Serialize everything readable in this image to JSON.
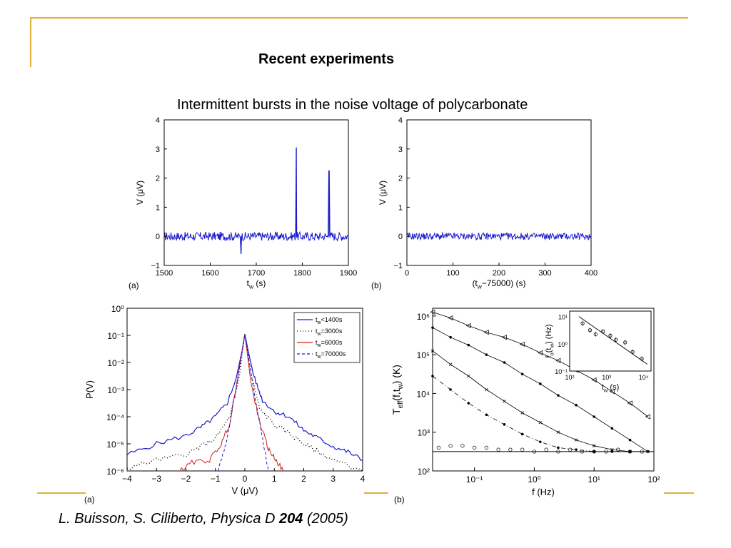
{
  "slide": {
    "title": "Recent experiments",
    "subtitle": "Intermittent bursts in the noise voltage of polycarbonate",
    "citation_prefix": "L. Buisson, S. Ciliberto, Physica D ",
    "citation_volume": "204",
    "citation_suffix": " (2005)"
  },
  "colors": {
    "accent": "#e1b038",
    "trace": "#1a1acc",
    "red": "#d42020",
    "black": "#000000"
  },
  "chart_data": [
    {
      "type": "line",
      "panel_label": "(a)",
      "xlabel_main": "t",
      "xlabel_sub": "w",
      "xlabel_unit": " (s)",
      "ylabel": "V (μV)",
      "xlim": [
        1500,
        1900
      ],
      "ylim": [
        -1,
        4
      ],
      "xticks": [
        1500,
        1600,
        1700,
        1800,
        1900
      ],
      "yticks": [
        -1,
        0,
        1,
        2,
        3,
        4
      ],
      "series": [
        {
          "baseline": 0,
          "noise_amplitude": 0.15,
          "spikes": [
            [
              1667,
              -0.6
            ],
            [
              1787,
              3.05
            ],
            [
              1858,
              2.25
            ]
          ]
        }
      ]
    },
    {
      "type": "line",
      "panel_label": "(b)",
      "xlabel_main": "(t",
      "xlabel_sub": "w",
      "xlabel_unit": "−75000) (s)",
      "ylabel": "V (μV)",
      "xlim": [
        0,
        400
      ],
      "ylim": [
        -1,
        4
      ],
      "xticks": [
        0,
        100,
        200,
        300,
        400
      ],
      "yticks": [
        -1,
        0,
        1,
        2,
        3,
        4
      ],
      "series": [
        {
          "baseline": 0,
          "noise_amplitude": 0.12,
          "spikes": []
        }
      ]
    },
    {
      "type": "line",
      "panel_label": "(a)",
      "xlabel": "V (μV)",
      "ylabel": "P(V)",
      "xlim": [
        -4,
        4
      ],
      "ylim_log10": [
        -6,
        0
      ],
      "yscale": "log",
      "xticks": [
        -4,
        -3,
        -2,
        -1,
        0,
        1,
        2,
        3,
        4
      ],
      "yticks_exp": [
        0,
        -1,
        -2,
        -3,
        -4,
        -5,
        -6
      ],
      "legend": {
        "position": "top-right",
        "entries": [
          {
            "main": "t",
            "sub": "w",
            "rest": "<1400s",
            "style": "solid",
            "color": "#1a1acc"
          },
          {
            "main": "t",
            "sub": "w",
            "rest": "=3000s",
            "style": "dots",
            "color": "#000000"
          },
          {
            "main": "t",
            "sub": "w",
            "rest": "=6000s",
            "style": "solid-marker",
            "color": "#d42020"
          },
          {
            "main": "t",
            "sub": "w",
            "rest": "=70000s",
            "style": "dashed",
            "color": "#1a1acc"
          }
        ]
      },
      "series": [
        {
          "points": [
            [
              -4,
              -5.4
            ],
            [
              -3,
              -5.0
            ],
            [
              -2,
              -4.7
            ],
            [
              -1.5,
              -4.4
            ],
            [
              -1,
              -4.0
            ],
            [
              -0.6,
              -3.5
            ],
            [
              -0.3,
              -2.6
            ],
            [
              -0.1,
              -1.6
            ],
            [
              0,
              -0.95
            ],
            [
              0.1,
              -1.5
            ],
            [
              0.3,
              -2.5
            ],
            [
              0.6,
              -3.4
            ],
            [
              1,
              -3.8
            ],
            [
              1.5,
              -4.0
            ],
            [
              2,
              -4.5
            ],
            [
              2.5,
              -4.8
            ],
            [
              3,
              -5.1
            ],
            [
              3.5,
              -5.3
            ],
            [
              4,
              -5.6
            ]
          ]
        },
        {
          "points": [
            [
              -4,
              -5.9
            ],
            [
              -3,
              -5.6
            ],
            [
              -2,
              -5.4
            ],
            [
              -1.5,
              -5.1
            ],
            [
              -1,
              -4.8
            ],
            [
              -0.5,
              -4.0
            ],
            [
              -0.2,
              -2.6
            ],
            [
              0,
              -0.95
            ],
            [
              0.2,
              -2.4
            ],
            [
              0.5,
              -3.7
            ],
            [
              1,
              -4.3
            ],
            [
              1.5,
              -4.6
            ],
            [
              2,
              -5.0
            ],
            [
              2.5,
              -5.3
            ],
            [
              3,
              -5.6
            ],
            [
              4,
              -6.0
            ]
          ]
        },
        {
          "points": [
            [
              -2.2,
              -6.0
            ],
            [
              -1.8,
              -5.7
            ],
            [
              -1.2,
              -5.6
            ],
            [
              -0.8,
              -5.0
            ],
            [
              -0.5,
              -4.2
            ],
            [
              -0.25,
              -2.6
            ],
            [
              0,
              -0.95
            ],
            [
              0.2,
              -2.7
            ],
            [
              0.5,
              -4.2
            ],
            [
              0.8,
              -5.2
            ],
            [
              1.0,
              -5.5
            ],
            [
              1.3,
              -6.0
            ]
          ]
        },
        {
          "points": [
            [
              -0.9,
              -6.0
            ],
            [
              -0.6,
              -4.8
            ],
            [
              -0.3,
              -3.0
            ],
            [
              0,
              -0.95
            ],
            [
              0.3,
              -3.0
            ],
            [
              0.6,
              -4.8
            ],
            [
              0.8,
              -6.0
            ]
          ]
        }
      ]
    },
    {
      "type": "scatter",
      "panel_label": "(b)",
      "xlabel": "f (Hz)",
      "ylabel_main": "T",
      "ylabel_sub": "eff",
      "ylabel_rest": "(f,t",
      "ylabel_sub2": "w",
      "ylabel_end": ") (K)",
      "xscale": "log",
      "yscale": "log",
      "xlim_log10": [
        -1.7,
        2
      ],
      "ylim_log10": [
        2,
        6.2
      ],
      "xticks_exp": [
        -1,
        0,
        1,
        2
      ],
      "yticks_exp": [
        2,
        3,
        4,
        5,
        6
      ],
      "series": [
        {
          "marker": "triangle",
          "points": [
            [
              -1.7,
              6.1
            ],
            [
              -1.4,
              5.95
            ],
            [
              -1.1,
              5.75
            ],
            [
              -0.8,
              5.58
            ],
            [
              -0.5,
              5.45
            ],
            [
              -0.2,
              5.27
            ],
            [
              0.1,
              5.05
            ],
            [
              0.4,
              4.85
            ],
            [
              0.7,
              4.6
            ],
            [
              1.0,
              4.35
            ],
            [
              1.3,
              4.05
            ],
            [
              1.6,
              3.75
            ],
            [
              1.9,
              3.4
            ]
          ]
        },
        {
          "marker": "dot",
          "points": [
            [
              -1.7,
              5.7
            ],
            [
              -1.4,
              5.45
            ],
            [
              -1.1,
              5.25
            ],
            [
              -0.8,
              5.0
            ],
            [
              -0.5,
              4.8
            ],
            [
              -0.2,
              4.5
            ],
            [
              0.1,
              4.25
            ],
            [
              0.4,
              3.95
            ],
            [
              0.7,
              3.7
            ],
            [
              1.0,
              3.4
            ],
            [
              1.3,
              3.1
            ],
            [
              1.6,
              2.8
            ],
            [
              1.9,
              2.5
            ]
          ]
        },
        {
          "marker": "x",
          "points": [
            [
              -1.7,
              5.1
            ],
            [
              -1.4,
              4.75
            ],
            [
              -1.1,
              4.45
            ],
            [
              -0.8,
              4.1
            ],
            [
              -0.5,
              3.8
            ],
            [
              -0.2,
              3.5
            ],
            [
              0.1,
              3.25
            ],
            [
              0.4,
              3.0
            ],
            [
              0.7,
              2.8
            ],
            [
              1.0,
              2.65
            ],
            [
              1.3,
              2.55
            ],
            [
              1.6,
              2.5
            ],
            [
              1.9,
              2.5
            ]
          ]
        },
        {
          "marker": "dot",
          "points": [
            [
              -1.7,
              4.45
            ],
            [
              -1.4,
              4.1
            ],
            [
              -1.1,
              3.75
            ],
            [
              -0.8,
              3.45
            ],
            [
              -0.5,
              3.2
            ],
            [
              -0.2,
              2.95
            ],
            [
              0.1,
              2.75
            ],
            [
              0.4,
              2.6
            ],
            [
              0.7,
              2.55
            ],
            [
              1.0,
              2.5
            ],
            [
              1.3,
              2.5
            ],
            [
              1.6,
              2.5
            ]
          ]
        },
        {
          "marker": "circle",
          "points": [
            [
              -1.6,
              2.6
            ],
            [
              -1.4,
              2.65
            ],
            [
              -1.2,
              2.65
            ],
            [
              -1.0,
              2.6
            ],
            [
              -0.8,
              2.6
            ],
            [
              -0.6,
              2.55
            ],
            [
              -0.4,
              2.55
            ],
            [
              -0.2,
              2.55
            ],
            [
              0.0,
              2.5
            ],
            [
              0.2,
              2.55
            ],
            [
              0.4,
              2.5
            ],
            [
              0.6,
              2.55
            ],
            [
              0.8,
              2.5
            ],
            [
              1.0,
              2.5
            ],
            [
              1.2,
              2.5
            ],
            [
              1.4,
              2.55
            ],
            [
              1.6,
              2.5
            ],
            [
              1.8,
              2.5
            ]
          ]
        }
      ],
      "inset": {
        "xlabel_main": "t",
        "xlabel_sub": "w",
        "xlabel_unit": " (s)",
        "ylabel_main": "f",
        "ylabel_sub": "o",
        "ylabel_rest": "(t",
        "ylabel_sub2": "w",
        "ylabel_end": ") (Hz)",
        "xlim_log10": [
          2,
          4.2
        ],
        "ylim_log10": [
          -1,
          1.2
        ],
        "xticks_exp": [
          2,
          3,
          4
        ],
        "yticks_exp": [
          -1,
          0,
          1
        ],
        "points": [
          [
            2.35,
            0.75
          ],
          [
            2.55,
            0.5
          ],
          [
            2.7,
            0.35
          ],
          [
            2.9,
            0.45
          ],
          [
            3.1,
            0.3
          ],
          [
            3.25,
            0.15
          ],
          [
            3.5,
            0.05
          ],
          [
            3.7,
            -0.3
          ],
          [
            3.95,
            -0.55
          ]
        ]
      }
    }
  ]
}
